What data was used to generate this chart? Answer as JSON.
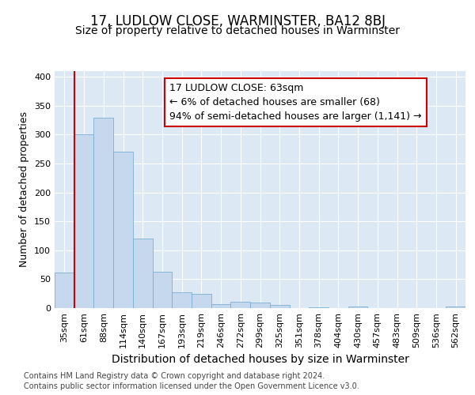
{
  "title": "17, LUDLOW CLOSE, WARMINSTER, BA12 8BJ",
  "subtitle": "Size of property relative to detached houses in Warminster",
  "xlabel": "Distribution of detached houses by size in Warminster",
  "ylabel": "Number of detached properties",
  "categories": [
    "35sqm",
    "61sqm",
    "88sqm",
    "114sqm",
    "140sqm",
    "167sqm",
    "193sqm",
    "219sqm",
    "246sqm",
    "272sqm",
    "299sqm",
    "325sqm",
    "351sqm",
    "378sqm",
    "404sqm",
    "430sqm",
    "457sqm",
    "483sqm",
    "509sqm",
    "536sqm",
    "562sqm"
  ],
  "values": [
    62,
    300,
    330,
    270,
    120,
    63,
    28,
    25,
    7,
    11,
    10,
    5,
    0,
    2,
    0,
    3,
    0,
    0,
    0,
    0,
    3
  ],
  "bar_color": "#c5d8ee",
  "bar_edge_color": "#7aafd4",
  "annotation_line1": "17 LUDLOW CLOSE: 63sqm",
  "annotation_line2": "← 6% of detached houses are smaller (68)",
  "annotation_line3": "94% of semi-detached houses are larger (1,141) →",
  "annotation_box_color": "white",
  "annotation_box_edge_color": "#cc0000",
  "ref_line_color": "#cc0000",
  "ylim": [
    0,
    410
  ],
  "yticks": [
    0,
    50,
    100,
    150,
    200,
    250,
    300,
    350,
    400
  ],
  "footer_line1": "Contains HM Land Registry data © Crown copyright and database right 2024.",
  "footer_line2": "Contains public sector information licensed under the Open Government Licence v3.0.",
  "plot_bg_color": "#dce9f5",
  "title_fontsize": 12,
  "subtitle_fontsize": 10,
  "xlabel_fontsize": 10,
  "ylabel_fontsize": 9,
  "tick_fontsize": 8,
  "footer_fontsize": 7,
  "annot_fontsize": 9
}
